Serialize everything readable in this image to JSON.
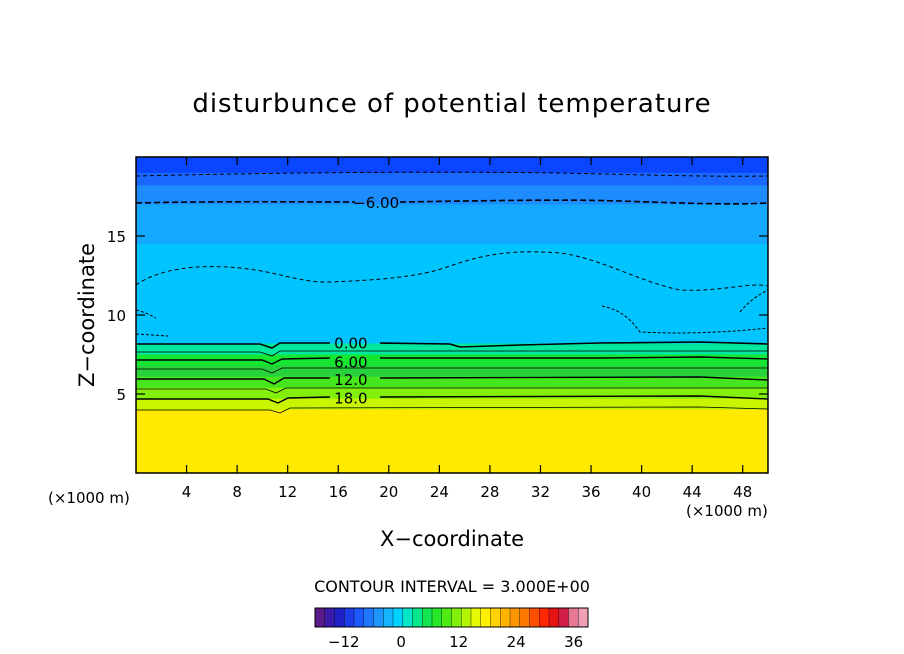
{
  "chart_data": {
    "type": "contour",
    "title": "disturbunce of potential temperature",
    "xlabel": "X−coordinate",
    "ylabel": "Z−coordinate",
    "x_unit_left": "(×1000 m)",
    "x_unit_right": "(×1000 m)",
    "xlim": [
      0,
      50
    ],
    "ylim": [
      0,
      20
    ],
    "x_ticks": [
      4,
      8,
      12,
      16,
      20,
      24,
      28,
      32,
      36,
      40,
      44,
      48
    ],
    "y_ticks": [
      5,
      10,
      15
    ],
    "contour_interval_text": "CONTOUR INTERVAL = 3.000E+00",
    "contour_labels": [
      {
        "text": "−6.00",
        "x": 19,
        "z": 17.1
      },
      {
        "text": "0.00",
        "x": 17,
        "z": 8.2
      },
      {
        "text": "6.00",
        "x": 17,
        "z": 7.0
      },
      {
        "text": "12.0",
        "x": 17,
        "z": 5.9
      },
      {
        "text": "18.0",
        "x": 17,
        "z": 4.7
      }
    ],
    "layers": [
      {
        "z_bottom": 19.0,
        "z_top": 20.0,
        "color": "#0a46ff"
      },
      {
        "z_bottom": 18.2,
        "z_top": 19.0,
        "color": "#1a68ff"
      },
      {
        "z_bottom": 17.0,
        "z_top": 18.2,
        "color": "#1c8cff"
      },
      {
        "z_bottom": 14.5,
        "z_top": 17.0,
        "color": "#14a8ff"
      },
      {
        "z_bottom": 8.2,
        "z_top": 14.5,
        "color": "#00c4ff"
      },
      {
        "z_bottom": 7.5,
        "z_top": 8.2,
        "color": "#00e8a0"
      },
      {
        "z_bottom": 6.8,
        "z_top": 7.5,
        "color": "#14e632"
      },
      {
        "z_bottom": 6.1,
        "z_top": 6.8,
        "color": "#28d23c"
      },
      {
        "z_bottom": 5.4,
        "z_top": 6.1,
        "color": "#46e61e"
      },
      {
        "z_bottom": 4.7,
        "z_top": 5.4,
        "color": "#82f00a"
      },
      {
        "z_bottom": 4.0,
        "z_top": 4.7,
        "color": "#c8f500"
      },
      {
        "z_bottom": 0.0,
        "z_top": 4.0,
        "color": "#ffea00"
      }
    ],
    "colorbar": {
      "vmin": -18,
      "vmax": 39,
      "tick_values": [
        -12,
        0,
        12,
        24,
        36
      ],
      "tick_labels": [
        "−12",
        "0",
        "12",
        "24",
        "36"
      ],
      "colors": [
        "#5a1a8a",
        "#3a1aa8",
        "#2020c8",
        "#1e3ce6",
        "#1c5aff",
        "#1e78ff",
        "#1e96ff",
        "#14b4ff",
        "#00d2ff",
        "#00e6c8",
        "#00e68c",
        "#14e650",
        "#28e628",
        "#50eb14",
        "#82f00a",
        "#b4f500",
        "#e6fa00",
        "#fff000",
        "#ffd200",
        "#ffb400",
        "#ff9600",
        "#ff7800",
        "#ff5000",
        "#ff2800",
        "#e61414",
        "#d21e46",
        "#e67896",
        "#f0a0b4"
      ]
    }
  }
}
